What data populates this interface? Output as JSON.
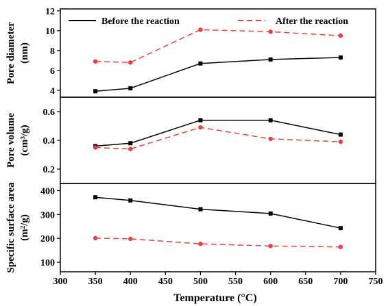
{
  "chart_data": {
    "type": "line",
    "x_axis": {
      "label": "Temperature",
      "unit": "°C",
      "ticks": [
        "300",
        "350",
        "400",
        "450",
        "500",
        "550",
        "600",
        "650",
        "700",
        "750"
      ],
      "range": [
        300,
        750
      ]
    },
    "legend": {
      "placement": "top",
      "entries": [
        {
          "label": "Before the reaction",
          "color": "#000000",
          "style": "solid"
        },
        {
          "label": "After the reaction",
          "color": "#e8403f",
          "style": "dashed"
        }
      ]
    },
    "panels": [
      {
        "ylabel_line1": "Pore diameter",
        "ylabel_line2": "(nm)",
        "ylim": [
          3.3,
          12.2
        ],
        "yticks": [
          "4",
          "6",
          "8",
          "10",
          "12"
        ],
        "series": [
          {
            "name": "Before the reaction",
            "x": [
              350,
              400,
              500,
              600,
              700
            ],
            "y": [
              3.9,
              4.2,
              6.7,
              7.1,
              7.3
            ]
          },
          {
            "name": "After the reaction",
            "x": [
              350,
              400,
              500,
              600,
              700
            ],
            "y": [
              6.9,
              6.8,
              10.1,
              9.9,
              9.5
            ]
          }
        ]
      },
      {
        "ylabel_line1": "Pore volume",
        "ylabel_line2": "(cm³/g)",
        "ylim": [
          0.1,
          0.7
        ],
        "yticks": [
          "0.2",
          "0.4",
          "0.6"
        ],
        "series": [
          {
            "name": "Before the reaction",
            "x": [
              350,
              400,
              500,
              600,
              700
            ],
            "y": [
              0.36,
              0.38,
              0.54,
              0.54,
              0.44
            ]
          },
          {
            "name": "After the reaction",
            "x": [
              350,
              400,
              500,
              600,
              700
            ],
            "y": [
              0.35,
              0.34,
              0.49,
              0.41,
              0.39
            ]
          }
        ]
      },
      {
        "ylabel_line1": "Specific surface area",
        "ylabel_line2": "(m²/g)",
        "ylim": [
          60,
          430
        ],
        "yticks": [
          "100",
          "200",
          "300",
          "400"
        ],
        "series": [
          {
            "name": "Before the reaction",
            "x": [
              350,
              400,
              500,
              600,
              700
            ],
            "y": [
              372,
              359,
              322,
              304,
              243
            ]
          },
          {
            "name": "After the reaction",
            "x": [
              350,
              400,
              500,
              600,
              700
            ],
            "y": [
              201,
              198,
              177,
              168,
              164
            ]
          }
        ]
      }
    ],
    "grid": false
  }
}
